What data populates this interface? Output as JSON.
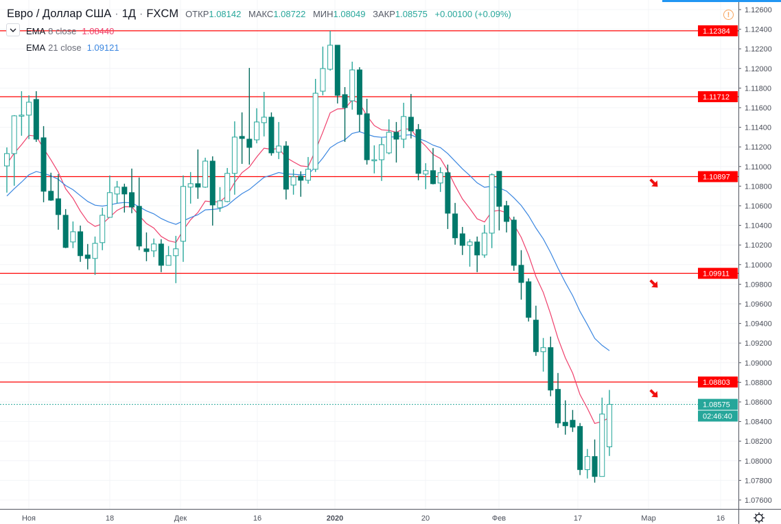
{
  "header": {
    "symbol": "Евро / Доллар США",
    "separator": "·",
    "interval": "1Д",
    "exchange": "FXCM",
    "ohlc": {
      "open_label": "ОТКР",
      "open": "1.08142",
      "high_label": "МАКС",
      "high": "1.08722",
      "low_label": "МИН",
      "low": "1.08049",
      "close_label": "ЗАКР",
      "close": "1.08575",
      "change": "+0.00100 (+0.09%)"
    }
  },
  "indicators": [
    {
      "name": "EMA",
      "params": "8 close",
      "value": "1.08440",
      "color": "#ef3f6b"
    },
    {
      "name": "EMA",
      "params": "21 close",
      "value": "1.09121",
      "color": "#3a86e0"
    }
  ],
  "icons": {
    "collapse": "chevron-down-icon",
    "warning": "exclamation-circle-icon",
    "settings": "gear-icon",
    "annotation": "red-arrow-down-right-icon"
  },
  "colors": {
    "bull": "#26a69a",
    "bear": "#00796b",
    "level": "#ff0000",
    "current_price": "#26a69a",
    "axis_text": "#4a4e59"
  },
  "chart_data": {
    "type": "candlestick",
    "title": "",
    "y_axis": {
      "range": [
        1.0752,
        1.1266
      ],
      "ticks": [
        "1.12600",
        "1.12400",
        "1.12200",
        "1.12000",
        "1.11800",
        "1.11600",
        "1.11400",
        "1.11200",
        "1.11000",
        "1.10800",
        "1.10600",
        "1.10400",
        "1.10200",
        "1.10000",
        "1.09800",
        "1.09600",
        "1.09400",
        "1.09200",
        "1.09000",
        "1.08800",
        "1.08600",
        "1.08400",
        "1.08200",
        "1.08000",
        "1.07800",
        "1.07600"
      ]
    },
    "x_axis": {
      "labels": [
        {
          "text": "Ноя",
          "bold": false
        },
        {
          "text": "18",
          "bold": false
        },
        {
          "text": "Дек",
          "bold": false
        },
        {
          "text": "16",
          "bold": false
        },
        {
          "text": "2020",
          "bold": true
        },
        {
          "text": "20",
          "bold": false
        },
        {
          "text": "Фев",
          "bold": false
        },
        {
          "text": "17",
          "bold": false
        },
        {
          "text": "Мар",
          "bold": false
        },
        {
          "text": "16",
          "bold": false
        }
      ]
    },
    "grid": true,
    "ohlc_order": [
      "open",
      "high",
      "low",
      "close"
    ],
    "candles": [
      [
        1.11006,
        1.11195,
        1.10734,
        1.11132
      ],
      [
        1.11132,
        1.11524,
        1.10804,
        1.11517
      ],
      [
        1.11517,
        1.11768,
        1.11314,
        1.11524
      ],
      [
        1.11524,
        1.11726,
        1.11279,
        1.11656
      ],
      [
        1.11684,
        1.11768,
        1.11251,
        1.11279
      ],
      [
        1.11293,
        1.11412,
        1.10636,
        1.10748
      ],
      [
        1.10748,
        1.10937,
        1.1065,
        1.10657
      ],
      [
        1.10671,
        1.10923,
        1.10356,
        1.1051
      ],
      [
        1.10503,
        1.10566,
        1.10168,
        1.10175
      ],
      [
        1.10231,
        1.1044,
        1.10168,
        1.10335
      ],
      [
        1.10335,
        1.10398,
        1.10028,
        1.10091
      ],
      [
        1.10098,
        1.1021,
        1.09951,
        1.10063
      ],
      [
        1.10063,
        1.10286,
        1.09895,
        1.10217
      ],
      [
        1.10224,
        1.1058,
        1.10147,
        1.10503
      ],
      [
        1.10482,
        1.10909,
        1.10482,
        1.10734
      ],
      [
        1.1072,
        1.10853,
        1.10622,
        1.1079
      ],
      [
        1.1079,
        1.10825,
        1.10531,
        1.1072
      ],
      [
        1.10734,
        1.10979,
        1.10524,
        1.10587
      ],
      [
        1.10594,
        1.10888,
        1.10147,
        1.10189
      ],
      [
        1.10161,
        1.10328,
        1.10035,
        1.10133
      ],
      [
        1.1014,
        1.10266,
        1.10077,
        1.1021
      ],
      [
        1.1021,
        1.10259,
        1.09923,
        1.09993
      ],
      [
        1.09993,
        1.10189,
        1.09993,
        1.10091
      ],
      [
        1.10091,
        1.10293,
        1.09811,
        1.10161
      ],
      [
        1.10238,
        1.10909,
        1.10028,
        1.10797
      ],
      [
        1.1079,
        1.10944,
        1.10622,
        1.10825
      ],
      [
        1.10825,
        1.11174,
        1.10671,
        1.1079
      ],
      [
        1.1079,
        1.1109,
        1.10783,
        1.11055
      ],
      [
        1.11055,
        1.11104,
        1.10398,
        1.10608
      ],
      [
        1.1058,
        1.1079,
        1.10538,
        1.1065
      ],
      [
        1.10643,
        1.10985,
        1.10636,
        1.1093
      ],
      [
        1.1093,
        1.11461,
        1.10713,
        1.113
      ],
      [
        1.11307,
        1.11552,
        1.11027,
        1.11286
      ],
      [
        1.11279,
        1.12006,
        1.1102,
        1.11195
      ],
      [
        1.11272,
        1.11594,
        1.11237,
        1.11454
      ],
      [
        1.11447,
        1.11761,
        1.11307,
        1.11503
      ],
      [
        1.11503,
        1.11552,
        1.11111,
        1.11139
      ],
      [
        1.11146,
        1.11454,
        1.11076,
        1.11209
      ],
      [
        1.11209,
        1.11258,
        1.10664,
        1.10769
      ],
      [
        1.10811,
        1.10972,
        1.10713,
        1.10895
      ],
      [
        1.10902,
        1.10951,
        1.10692,
        1.1086
      ],
      [
        1.1086,
        1.11097,
        1.10825,
        1.10972
      ],
      [
        1.10972,
        1.11894,
        1.10944,
        1.11747
      ],
      [
        1.11768,
        1.12223,
        1.11726,
        1.11999
      ],
      [
        1.11992,
        1.12384,
        1.11978,
        1.12237
      ],
      [
        1.12237,
        1.12237,
        1.11643,
        1.11726
      ],
      [
        1.11733,
        1.1181,
        1.11251,
        1.11601
      ],
      [
        1.1167,
        1.12069,
        1.1158,
        1.11985
      ],
      [
        1.11985,
        1.12013,
        1.11356,
        1.11531
      ],
      [
        1.11538,
        1.11691,
        1.1102,
        1.11069
      ],
      [
        1.11062,
        1.11216,
        1.1093,
        1.11069
      ],
      [
        1.11069,
        1.11293,
        1.10853,
        1.11223
      ],
      [
        1.11139,
        1.11482,
        1.11125,
        1.11349
      ],
      [
        1.11349,
        1.11454,
        1.11041,
        1.11279
      ],
      [
        1.11279,
        1.1165,
        1.11188,
        1.1151
      ],
      [
        1.11503,
        1.1174,
        1.11286,
        1.11363
      ],
      [
        1.11377,
        1.11433,
        1.1086,
        1.1093
      ],
      [
        1.10923,
        1.11034,
        1.10769,
        1.10958
      ],
      [
        1.10958,
        1.11188,
        1.10818,
        1.10825
      ],
      [
        1.10832,
        1.10992,
        1.10741,
        1.10937
      ],
      [
        1.10937,
        1.1102,
        1.10363,
        1.10524
      ],
      [
        1.10517,
        1.10629,
        1.10203,
        1.10273
      ],
      [
        1.10314,
        1.10384,
        1.10098,
        1.10196
      ],
      [
        1.10196,
        1.10259,
        1.09979,
        1.10231
      ],
      [
        1.10231,
        1.10286,
        1.09923,
        1.10098
      ],
      [
        1.10098,
        1.10405,
        1.1007,
        1.10321
      ],
      [
        1.10321,
        1.1093,
        1.10168,
        1.10916
      ],
      [
        1.10951,
        1.10951,
        1.10349,
        1.10594
      ],
      [
        1.10601,
        1.1065,
        1.10328,
        1.1044
      ],
      [
        1.10454,
        1.10489,
        1.09937,
        1.09993
      ],
      [
        1.09993,
        1.10147,
        1.09643,
        1.09818
      ],
      [
        1.09825,
        1.0986,
        1.0942,
        1.09462
      ],
      [
        1.09434,
        1.09581,
        1.0907,
        1.09112
      ],
      [
        1.09112,
        1.09252,
        1.08909,
        1.09154
      ],
      [
        1.09154,
        1.09266,
        1.08658,
        1.08721
      ],
      [
        1.08728,
        1.08895,
        1.08336,
        1.08385
      ],
      [
        1.08392,
        1.08616,
        1.08266,
        1.08357
      ],
      [
        1.08413,
        1.08518,
        1.08294,
        1.08343
      ],
      [
        1.0835,
        1.08385,
        1.07854,
        1.0791
      ],
      [
        1.0791,
        1.0812,
        1.07819,
        1.08043
      ],
      [
        1.08043,
        1.08217,
        1.07777,
        1.0784
      ],
      [
        1.0784,
        1.08644,
        1.0784,
        1.08476
      ],
      [
        1.08142,
        1.08722,
        1.08049,
        1.08575
      ]
    ],
    "ema_series": [
      {
        "period": 8,
        "first_value": 1.11027,
        "last_value": 1.0844,
        "color": "#ef3f6b"
      },
      {
        "period": 21,
        "first_value": 1.10699,
        "last_value": 1.09121,
        "color": "#3a86e0"
      }
    ],
    "horizontal_levels": [
      {
        "price": 1.12384,
        "label": "1.12384"
      },
      {
        "price": 1.11712,
        "label": "1.11712"
      },
      {
        "price": 1.10897,
        "label": "1.10897"
      },
      {
        "price": 1.09911,
        "label": "1.09911"
      },
      {
        "price": 1.08803,
        "label": "1.08803"
      }
    ],
    "current_price": {
      "price": 1.08575,
      "label": "1.08575",
      "countdown": "02:46:40"
    },
    "annotations": [
      "red-arrow-down-right-icon",
      "red-arrow-down-right-icon",
      "red-arrow-down-right-icon"
    ]
  }
}
